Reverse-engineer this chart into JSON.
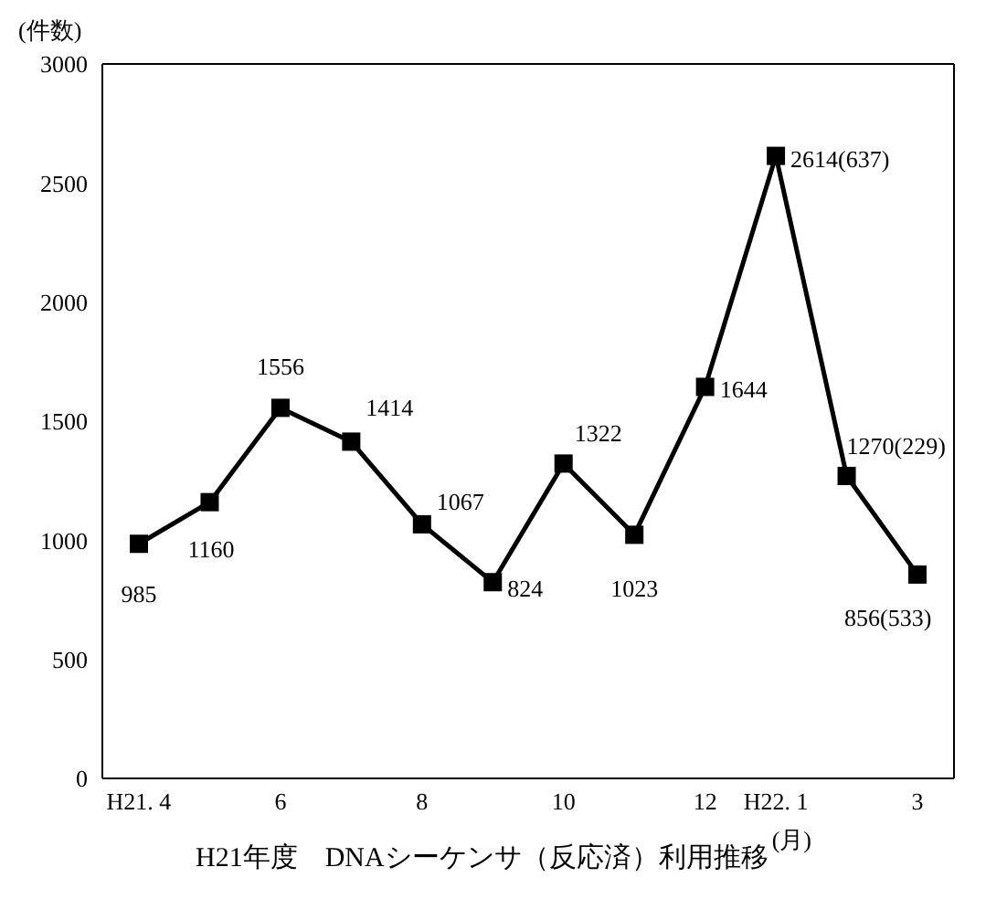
{
  "chart_data": {
    "type": "line",
    "title": "H21年度　DNAシーケンサ（反応済）利用推移",
    "ylabel": "(件数)",
    "xlabel": "(月)",
    "categories": [
      "H21. 4",
      null,
      "6",
      null,
      "8",
      null,
      "10",
      null,
      "12",
      "H22. 1",
      null,
      "3"
    ],
    "series": [
      {
        "color": "#000000",
        "values": [
          985,
          1160,
          1556,
          1414,
          1067,
          824,
          1322,
          1023,
          1644,
          2614,
          1270,
          856
        ],
        "value_labels": [
          "985",
          "1160",
          "1556",
          "1414",
          "1067",
          "824",
          "1322",
          "1023",
          "1644",
          "2614(637)",
          "1270(229)",
          "856(533)"
        ]
      }
    ],
    "ylim": [
      0,
      3000
    ],
    "yticks": [
      0,
      500,
      1000,
      1500,
      2000,
      2500,
      3000
    ],
    "grid": false,
    "legend": false,
    "marker": "square",
    "line_style": "solid"
  }
}
